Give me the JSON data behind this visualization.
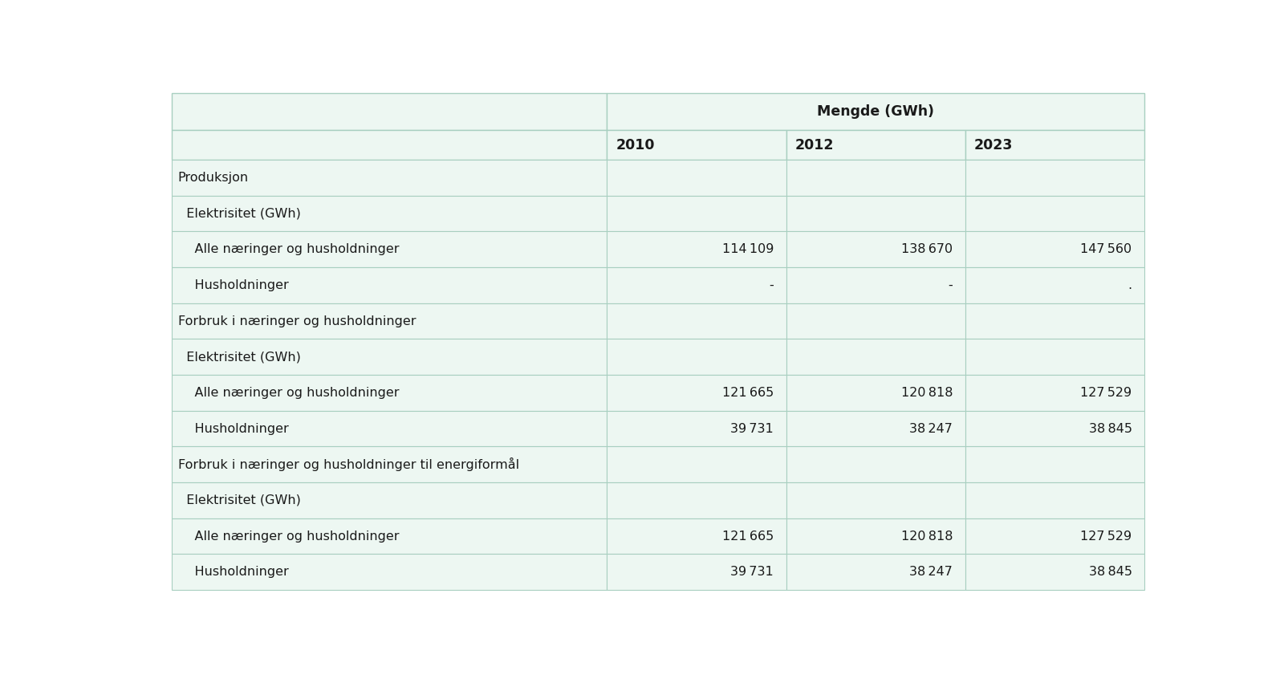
{
  "title_row": "Mengde (GWh)",
  "year_cols": [
    "2010",
    "2012",
    "2023"
  ],
  "rows": [
    {
      "label": "Produksjon",
      "indent": 0,
      "values": [
        "",
        "",
        ""
      ],
      "bg": "light"
    },
    {
      "label": "  Elektrisitet (GWh)",
      "indent": 1,
      "values": [
        "",
        "",
        ""
      ],
      "bg": "light"
    },
    {
      "label": "    Alle næringer og husholdninger",
      "indent": 2,
      "values": [
        "114 109",
        "138 670",
        "147 560"
      ],
      "bg": "light"
    },
    {
      "label": "    Husholdninger",
      "indent": 2,
      "values": [
        "-",
        "-",
        "."
      ],
      "bg": "light"
    },
    {
      "label": "Forbruk i næringer og husholdninger",
      "indent": 0,
      "values": [
        "",
        "",
        ""
      ],
      "bg": "light"
    },
    {
      "label": "  Elektrisitet (GWh)",
      "indent": 1,
      "values": [
        "",
        "",
        ""
      ],
      "bg": "light"
    },
    {
      "label": "    Alle næringer og husholdninger",
      "indent": 2,
      "values": [
        "121 665",
        "120 818",
        "127 529"
      ],
      "bg": "light"
    },
    {
      "label": "    Husholdninger",
      "indent": 2,
      "values": [
        "39 731",
        "38 247",
        "38 845"
      ],
      "bg": "light"
    },
    {
      "label": "Forbruk i næringer og husholdninger til energiformål",
      "indent": 0,
      "values": [
        "",
        "",
        ""
      ],
      "bg": "light"
    },
    {
      "label": "  Elektrisitet (GWh)",
      "indent": 1,
      "values": [
        "",
        "",
        ""
      ],
      "bg": "light"
    },
    {
      "label": "    Alle næringer og husholdninger",
      "indent": 2,
      "values": [
        "121 665",
        "120 818",
        "127 529"
      ],
      "bg": "light"
    },
    {
      "label": "    Husholdninger",
      "indent": 2,
      "values": [
        "39 731",
        "38 247",
        "38 845"
      ],
      "bg": "light"
    }
  ],
  "cell_bg": "#edf7f2",
  "border_color": "#a8cfc0",
  "text_color": "#1a1a1a",
  "font_size": 11.5,
  "header_font_size": 12.5
}
